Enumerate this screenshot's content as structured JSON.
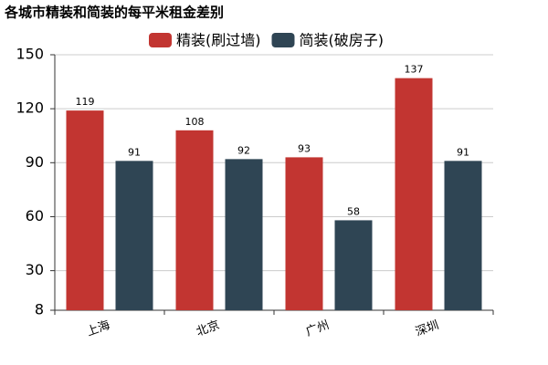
{
  "chart_data": {
    "type": "bar",
    "title": "各城市精装和简装的每平米租金差别",
    "categories": [
      "上海",
      "北京",
      "广州",
      "深圳"
    ],
    "series": [
      {
        "name": "精装(刷过墙)",
        "color": "#c23531",
        "values": [
          119,
          108,
          93,
          137
        ]
      },
      {
        "name": "简装(破房子)",
        "color": "#2f4554",
        "values": [
          91,
          92,
          58,
          91
        ]
      }
    ],
    "ylim": [
      8,
      150
    ],
    "yticks": [
      8,
      30,
      60,
      90,
      120,
      150
    ],
    "grid": true
  }
}
